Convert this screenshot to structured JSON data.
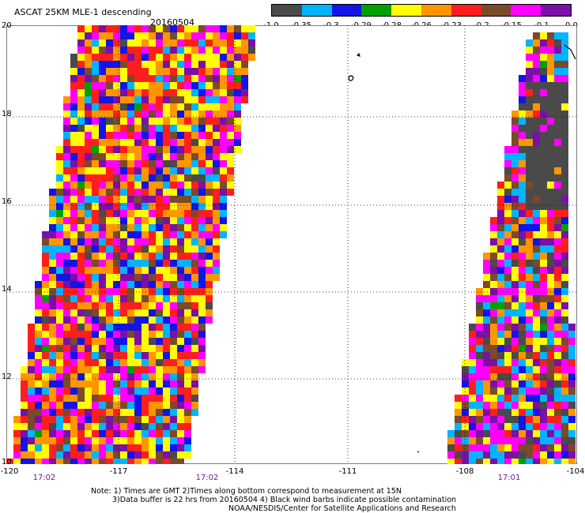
{
  "header": {
    "title": "ASCAT 25KM MLE-1 descending",
    "date": "20160504"
  },
  "legend": {
    "colors": [
      "#4a4a4a",
      "#00b4ff",
      "#1414e6",
      "#00a000",
      "#ffff00",
      "#ff9600",
      "#ff1e1e",
      "#7a4a2a",
      "#ff00ff",
      "#7a10a8"
    ],
    "labels": [
      "-1.0",
      "-0.35",
      "-0.3",
      "-0.29",
      "-0.28",
      "-0.26",
      "-0.23",
      "-0.2",
      "-0.15",
      "-0.1",
      "0.0"
    ]
  },
  "map": {
    "lon_range": [
      -120,
      -104
    ],
    "lat_range": [
      10,
      20
    ],
    "x_ticks": [
      "-120",
      "-117",
      "-114",
      "-111",
      "-108",
      "-104"
    ],
    "y_ticks": [
      "20",
      "18",
      "16",
      "14",
      "12",
      "10"
    ],
    "pass_times": [
      "17:02",
      "17:02",
      "17:01"
    ]
  },
  "notes": {
    "line1": "Note: 1) Times are GMT 2)Times along bottom correspond to measurement at 15N",
    "line2": "3)Data buffer is 22 hrs from 20160504 4) Black wind barbs indicate possible contamination",
    "line3": "NOAA/NESDIS/Center for Satellite Applications and Research"
  }
}
